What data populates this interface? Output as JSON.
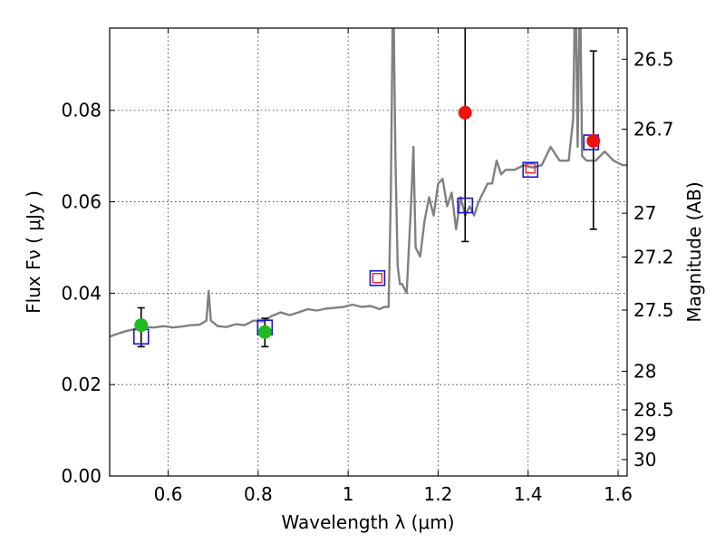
{
  "chart_data": {
    "type": "line",
    "title": "",
    "xlabel": "Wavelength  λ (μm)",
    "ylabel": "Flux  Fν  ( μJy )",
    "ylabel_right": "Magnitude (AB)",
    "xlim": [
      0.47,
      1.62
    ],
    "ylim": [
      0.0,
      0.098
    ],
    "xticks": [
      0.6,
      0.8,
      1.0,
      1.2,
      1.4,
      1.6
    ],
    "xtick_labels": [
      "0.6",
      "0.8",
      "1",
      "1.2",
      "1.4",
      "1.6"
    ],
    "yticks": [
      0.0,
      0.02,
      0.04,
      0.06,
      0.08
    ],
    "ytick_labels": [
      "0.00",
      "0.02",
      "0.04",
      "0.06",
      "0.08"
    ],
    "right_ticks": [
      {
        "label": "26.5",
        "flux": 0.0912
      },
      {
        "label": "26.7",
        "flux": 0.0759
      },
      {
        "label": "27",
        "flux": 0.0575
      },
      {
        "label": "27.2",
        "flux": 0.0479
      },
      {
        "label": "27.5",
        "flux": 0.0363
      },
      {
        "label": "28",
        "flux": 0.0229
      },
      {
        "label": "28.5",
        "flux": 0.0145
      },
      {
        "label": "29",
        "flux": 0.0091
      },
      {
        "label": "30",
        "flux": 0.0036
      }
    ],
    "grid": true,
    "colors": {
      "sed": "#808080",
      "green_point": "#1fba1f",
      "red_point": "#ee1111",
      "blue_box": "#1515d8",
      "red_box": "#ee1111",
      "errorbar": "#000000"
    },
    "series": [
      {
        "name": "SED template",
        "style": "line",
        "x": [
          0.47,
          0.49,
          0.51,
          0.53,
          0.55,
          0.57,
          0.59,
          0.61,
          0.63,
          0.65,
          0.67,
          0.685,
          0.69,
          0.695,
          0.71,
          0.73,
          0.75,
          0.77,
          0.79,
          0.81,
          0.83,
          0.85,
          0.87,
          0.89,
          0.91,
          0.93,
          0.95,
          0.97,
          0.99,
          1.01,
          1.03,
          1.05,
          1.07,
          1.08,
          1.09,
          1.095,
          1.1,
          1.105,
          1.11,
          1.115,
          1.12,
          1.13,
          1.14,
          1.145,
          1.15,
          1.16,
          1.17,
          1.18,
          1.19,
          1.2,
          1.21,
          1.22,
          1.23,
          1.24,
          1.25,
          1.26,
          1.27,
          1.28,
          1.29,
          1.3,
          1.31,
          1.32,
          1.33,
          1.34,
          1.35,
          1.37,
          1.39,
          1.41,
          1.43,
          1.45,
          1.47,
          1.49,
          1.5,
          1.505,
          1.51,
          1.515,
          1.52,
          1.53,
          1.55,
          1.57,
          1.59,
          1.61,
          1.62
        ],
        "y": [
          0.0305,
          0.0312,
          0.0318,
          0.0322,
          0.0326,
          0.0325,
          0.0328,
          0.0325,
          0.0327,
          0.033,
          0.0331,
          0.034,
          0.0405,
          0.034,
          0.0328,
          0.0326,
          0.0332,
          0.033,
          0.034,
          0.0338,
          0.035,
          0.0358,
          0.0352,
          0.0358,
          0.0365,
          0.0362,
          0.0366,
          0.0368,
          0.037,
          0.0375,
          0.037,
          0.0372,
          0.0365,
          0.037,
          0.037,
          0.062,
          0.11,
          0.07,
          0.046,
          0.042,
          0.042,
          0.04,
          0.06,
          0.072,
          0.05,
          0.048,
          0.056,
          0.061,
          0.057,
          0.064,
          0.065,
          0.059,
          0.062,
          0.054,
          0.061,
          0.057,
          0.059,
          0.057,
          0.06,
          0.062,
          0.064,
          0.064,
          0.069,
          0.066,
          0.067,
          0.067,
          0.068,
          0.0675,
          0.068,
          0.072,
          0.069,
          0.069,
          0.078,
          0.11,
          0.072,
          0.11,
          0.07,
          0.069,
          0.069,
          0.071,
          0.069,
          0.068,
          0.068
        ]
      },
      {
        "name": "Detections (green)",
        "style": "marker",
        "points": [
          {
            "x": 0.54,
            "y": 0.033,
            "err_low": 0.0283,
            "err_high": 0.0368
          },
          {
            "x": 0.815,
            "y": 0.0315,
            "err_low": 0.0283,
            "err_high": 0.0345
          }
        ]
      },
      {
        "name": "Detections (red)",
        "style": "marker",
        "points": [
          {
            "x": 1.26,
            "y": 0.0795,
            "err_low": 0.0513,
            "err_high": 0.11
          },
          {
            "x": 1.545,
            "y": 0.0733,
            "err_low": 0.054,
            "err_high": 0.093
          }
        ]
      },
      {
        "name": "Model photometry (blue squares)",
        "style": "marker",
        "points": [
          {
            "x": 0.54,
            "y": 0.0305
          },
          {
            "x": 0.815,
            "y": 0.0325
          },
          {
            "x": 1.065,
            "y": 0.0433
          },
          {
            "x": 1.26,
            "y": 0.0592
          },
          {
            "x": 1.405,
            "y": 0.067
          },
          {
            "x": 1.54,
            "y": 0.073
          }
        ]
      },
      {
        "name": "Observed photometry (red squares)",
        "style": "marker",
        "points": [
          {
            "x": 1.065,
            "y": 0.0433
          },
          {
            "x": 1.405,
            "y": 0.0673
          }
        ]
      }
    ]
  }
}
